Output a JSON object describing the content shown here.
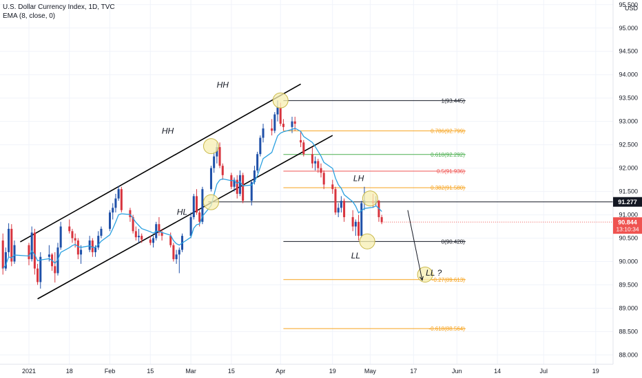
{
  "header": {
    "symbol_title": "U.S. Dollar Currency Index, 1D, TVC",
    "indicator": "EMA (8, close, 0)"
  },
  "price_axis": {
    "currency_label": "USD",
    "ticks": [
      "95.500",
      "95.000",
      "94.500",
      "94.000",
      "93.500",
      "93.000",
      "92.500",
      "92.000",
      "91.500",
      "91.000",
      "90.500",
      "90.000",
      "89.500",
      "89.000",
      "88.500",
      "88.000"
    ],
    "tick_values": [
      95.5,
      95.0,
      94.5,
      94.0,
      93.5,
      93.0,
      92.5,
      92.0,
      91.5,
      91.0,
      90.5,
      90.0,
      89.5,
      89.0,
      88.5,
      88.0
    ],
    "line_tag": "91.277",
    "line_tag_value": 91.277,
    "price_tag": "90.844",
    "price_tag_value": 90.844,
    "countdown": "13:10:34"
  },
  "time_axis": {
    "labels": [
      "2021",
      "18",
      "Feb",
      "15",
      "Mar",
      "15",
      "Apr",
      "19",
      "May",
      "17",
      "Jun",
      "14",
      "Jul",
      "19"
    ],
    "label_days": [
      4,
      18,
      32,
      46,
      60,
      74,
      91,
      109,
      122,
      137,
      152,
      166,
      182,
      200
    ]
  },
  "colors": {
    "up": "#1f50a8",
    "down": "#d8343e",
    "ema": "#2aa0e0",
    "channel": "#000000",
    "highlight_fill": "#f7efb2",
    "highlight_stroke": "#c9b84a",
    "tag_dark": "#131722",
    "tag_red": "#ef5350",
    "fib_one": "#131722",
    "fib_0786": "#f7a21b",
    "fib_0618": "#4caf50",
    "fib_05": "#ef5350",
    "fib_0382": "#f7a21b",
    "fib_zero": "#131722",
    "fib_neg027": "#f7a21b",
    "fib_neg0618": "#f7a21b"
  },
  "annotations": [
    {
      "text": "HH",
      "day": 71,
      "price": 93.72
    },
    {
      "text": "HH",
      "day": 52,
      "price": 92.74
    },
    {
      "text": "HL",
      "day": 57,
      "price": 91.0
    },
    {
      "text": "LH",
      "day": 118,
      "price": 91.72
    },
    {
      "text": "LL",
      "day": 117,
      "price": 90.07
    },
    {
      "text": "LL ?",
      "day": 144,
      "price": 89.7
    }
  ],
  "chart_data": {
    "type": "candlestick",
    "title": "U.S. Dollar Currency Index, 1D, TVC",
    "ylabel": "USD",
    "ylim": [
      87.8,
      95.6
    ],
    "xlim_days": [
      -6,
      206
    ],
    "x_unit": "calendar days since 2021-01-01",
    "candles": [
      {
        "day": -5,
        "open": 90.45,
        "high": 90.6,
        "low": 89.72,
        "close": 89.85
      },
      {
        "day": -4,
        "open": 89.85,
        "high": 90.3,
        "low": 89.8,
        "close": 90.2
      },
      {
        "day": -3,
        "open": 90.2,
        "high": 90.82,
        "low": 90.1,
        "close": 90.7
      },
      {
        "day": -2,
        "open": 90.7,
        "high": 90.8,
        "low": 89.9,
        "close": 90.0
      },
      {
        "day": -1,
        "open": 90.0,
        "high": 90.45,
        "low": 89.95,
        "close": 90.35
      },
      {
        "day": 4,
        "open": 90.35,
        "high": 90.4,
        "low": 89.92,
        "close": 90.05
      },
      {
        "day": 5,
        "open": 90.05,
        "high": 90.75,
        "low": 90.0,
        "close": 90.62
      },
      {
        "day": 6,
        "open": 90.62,
        "high": 90.7,
        "low": 89.72,
        "close": 89.85
      },
      {
        "day": 7,
        "open": 89.85,
        "high": 89.95,
        "low": 89.5,
        "close": 89.56
      },
      {
        "day": 8,
        "open": 89.56,
        "high": 90.2,
        "low": 89.42,
        "close": 90.1
      },
      {
        "day": 11,
        "open": 90.1,
        "high": 90.35,
        "low": 90.0,
        "close": 90.15
      },
      {
        "day": 12,
        "open": 90.15,
        "high": 90.18,
        "low": 89.8,
        "close": 89.9
      },
      {
        "day": 13,
        "open": 89.9,
        "high": 90.2,
        "low": 89.55,
        "close": 89.75
      },
      {
        "day": 14,
        "open": 89.75,
        "high": 90.4,
        "low": 89.7,
        "close": 90.3
      },
      {
        "day": 15,
        "open": 90.3,
        "high": 90.85,
        "low": 90.25,
        "close": 90.75
      },
      {
        "day": 18,
        "open": 90.75,
        "high": 90.9,
        "low": 90.6,
        "close": 90.65
      },
      {
        "day": 19,
        "open": 90.65,
        "high": 90.7,
        "low": 90.4,
        "close": 90.5
      },
      {
        "day": 20,
        "open": 90.5,
        "high": 90.6,
        "low": 90.3,
        "close": 90.45
      },
      {
        "day": 21,
        "open": 90.45,
        "high": 90.5,
        "low": 90.05,
        "close": 90.15
      },
      {
        "day": 22,
        "open": 90.15,
        "high": 90.35,
        "low": 89.95,
        "close": 90.25
      },
      {
        "day": 25,
        "open": 90.25,
        "high": 90.55,
        "low": 90.2,
        "close": 90.45
      },
      {
        "day": 26,
        "open": 90.45,
        "high": 90.5,
        "low": 90.1,
        "close": 90.2
      },
      {
        "day": 27,
        "open": 90.2,
        "high": 90.35,
        "low": 90.1,
        "close": 90.3
      },
      {
        "day": 28,
        "open": 90.3,
        "high": 90.65,
        "low": 90.25,
        "close": 90.55
      },
      {
        "day": 29,
        "open": 90.55,
        "high": 90.75,
        "low": 90.5,
        "close": 90.7
      },
      {
        "day": 32,
        "open": 90.7,
        "high": 91.1,
        "low": 90.65,
        "close": 91.05
      },
      {
        "day": 33,
        "open": 91.05,
        "high": 91.25,
        "low": 90.9,
        "close": 91.15
      },
      {
        "day": 34,
        "open": 91.15,
        "high": 91.45,
        "low": 91.05,
        "close": 91.35
      },
      {
        "day": 35,
        "open": 91.35,
        "high": 91.62,
        "low": 91.3,
        "close": 91.55
      },
      {
        "day": 36,
        "open": 91.55,
        "high": 91.6,
        "low": 91.05,
        "close": 91.1
      },
      {
        "day": 39,
        "open": 91.1,
        "high": 91.15,
        "low": 90.85,
        "close": 90.95
      },
      {
        "day": 40,
        "open": 90.95,
        "high": 91.0,
        "low": 90.6,
        "close": 90.65
      },
      {
        "day": 41,
        "open": 90.65,
        "high": 90.75,
        "low": 90.45,
        "close": 90.52
      },
      {
        "day": 42,
        "open": 90.52,
        "high": 90.7,
        "low": 90.4,
        "close": 90.55
      },
      {
        "day": 43,
        "open": 90.55,
        "high": 90.6,
        "low": 90.4,
        "close": 90.47
      },
      {
        "day": 46,
        "open": 90.47,
        "high": 90.55,
        "low": 90.35,
        "close": 90.4
      },
      {
        "day": 47,
        "open": 90.4,
        "high": 90.55,
        "low": 90.3,
        "close": 90.5
      },
      {
        "day": 48,
        "open": 90.5,
        "high": 90.85,
        "low": 90.45,
        "close": 90.8
      },
      {
        "day": 49,
        "open": 90.8,
        "high": 90.95,
        "low": 90.55,
        "close": 90.62
      },
      {
        "day": 50,
        "open": 90.62,
        "high": 90.7,
        "low": 90.45,
        "close": 90.55
      },
      {
        "day": 53,
        "open": 90.55,
        "high": 90.62,
        "low": 90.3,
        "close": 90.35
      },
      {
        "day": 54,
        "open": 90.35,
        "high": 90.4,
        "low": 90.0,
        "close": 90.05
      },
      {
        "day": 55,
        "open": 90.05,
        "high": 90.25,
        "low": 89.95,
        "close": 90.15
      },
      {
        "day": 56,
        "open": 90.15,
        "high": 90.3,
        "low": 89.75,
        "close": 90.25
      },
      {
        "day": 57,
        "open": 90.25,
        "high": 90.6,
        "low": 90.2,
        "close": 90.55
      },
      {
        "day": 60,
        "open": 90.55,
        "high": 91.05,
        "low": 90.5,
        "close": 90.95
      },
      {
        "day": 61,
        "open": 90.95,
        "high": 91.45,
        "low": 90.9,
        "close": 91.4
      },
      {
        "day": 62,
        "open": 91.4,
        "high": 91.55,
        "low": 91.0,
        "close": 91.05
      },
      {
        "day": 63,
        "open": 91.05,
        "high": 91.1,
        "low": 90.75,
        "close": 90.85
      },
      {
        "day": 64,
        "open": 90.85,
        "high": 91.6,
        "low": 90.8,
        "close": 91.55
      },
      {
        "day": 67,
        "open": 91.55,
        "high": 92.05,
        "low": 91.5,
        "close": 92.0
      },
      {
        "day": 68,
        "open": 92.0,
        "high": 92.35,
        "low": 91.9,
        "close": 92.25
      },
      {
        "day": 69,
        "open": 92.25,
        "high": 92.55,
        "low": 92.1,
        "close": 92.45
      },
      {
        "day": 70,
        "open": 92.45,
        "high": 92.55,
        "low": 92.0,
        "close": 92.05
      },
      {
        "day": 71,
        "open": 92.05,
        "high": 92.1,
        "low": 91.75,
        "close": 91.85
      },
      {
        "day": 74,
        "open": 91.85,
        "high": 91.9,
        "low": 91.55,
        "close": 91.6
      },
      {
        "day": 75,
        "open": 91.6,
        "high": 91.8,
        "low": 91.5,
        "close": 91.75
      },
      {
        "day": 76,
        "open": 91.75,
        "high": 91.85,
        "low": 91.35,
        "close": 91.45
      },
      {
        "day": 77,
        "open": 91.45,
        "high": 91.95,
        "low": 91.4,
        "close": 91.85
      },
      {
        "day": 78,
        "open": 91.85,
        "high": 91.9,
        "low": 91.25,
        "close": 91.3
      },
      {
        "day": 81,
        "open": 91.3,
        "high": 91.75,
        "low": 91.2,
        "close": 91.7
      },
      {
        "day": 82,
        "open": 91.7,
        "high": 92.05,
        "low": 91.65,
        "close": 91.95
      },
      {
        "day": 83,
        "open": 91.95,
        "high": 92.35,
        "low": 91.9,
        "close": 92.3
      },
      {
        "day": 84,
        "open": 92.3,
        "high": 92.7,
        "low": 92.25,
        "close": 92.65
      },
      {
        "day": 85,
        "open": 92.65,
        "high": 92.95,
        "low": 92.55,
        "close": 92.85
      },
      {
        "day": 88,
        "open": 92.85,
        "high": 93.05,
        "low": 92.7,
        "close": 92.8
      },
      {
        "day": 89,
        "open": 92.8,
        "high": 93.2,
        "low": 92.75,
        "close": 93.15
      },
      {
        "day": 90,
        "open": 93.15,
        "high": 93.45,
        "low": 93.0,
        "close": 93.3
      },
      {
        "day": 91,
        "open": 93.3,
        "high": 93.4,
        "low": 92.9,
        "close": 92.95
      },
      {
        "day": 92,
        "open": 92.95,
        "high": 93.05,
        "low": 92.8,
        "close": 92.88
      },
      {
        "day": 95,
        "open": 92.88,
        "high": 93.1,
        "low": 92.75,
        "close": 93.0
      },
      {
        "day": 96,
        "open": 93.0,
        "high": 93.1,
        "low": 92.8,
        "close": 92.95
      },
      {
        "day": 98,
        "open": 92.6,
        "high": 92.8,
        "low": 92.45,
        "close": 92.55
      },
      {
        "day": 99,
        "open": 92.55,
        "high": 92.6,
        "low": 92.25,
        "close": 92.3
      },
      {
        "day": 102,
        "open": 92.3,
        "high": 92.45,
        "low": 92.0,
        "close": 92.1
      },
      {
        "day": 103,
        "open": 92.1,
        "high": 92.25,
        "low": 91.95,
        "close": 92.15
      },
      {
        "day": 104,
        "open": 92.15,
        "high": 92.2,
        "low": 91.9,
        "close": 92.0
      },
      {
        "day": 105,
        "open": 92.0,
        "high": 92.1,
        "low": 91.8,
        "close": 91.9
      },
      {
        "day": 106,
        "open": 91.9,
        "high": 91.95,
        "low": 91.55,
        "close": 91.65
      },
      {
        "day": 109,
        "open": 91.65,
        "high": 91.75,
        "low": 91.45,
        "close": 91.55
      },
      {
        "day": 110,
        "open": 91.55,
        "high": 91.6,
        "low": 91.0,
        "close": 91.05
      },
      {
        "day": 111,
        "open": 91.05,
        "high": 91.25,
        "low": 90.95,
        "close": 91.15
      },
      {
        "day": 112,
        "open": 91.15,
        "high": 91.4,
        "low": 91.05,
        "close": 91.3
      },
      {
        "day": 113,
        "open": 91.3,
        "high": 91.35,
        "low": 90.85,
        "close": 90.95
      },
      {
        "day": 116,
        "open": 90.95,
        "high": 91.1,
        "low": 90.65,
        "close": 90.75
      },
      {
        "day": 117,
        "open": 90.75,
        "high": 90.9,
        "low": 90.55,
        "close": 90.85
      },
      {
        "day": 118,
        "open": 90.85,
        "high": 91.0,
        "low": 90.45,
        "close": 90.55
      },
      {
        "day": 119,
        "open": 90.55,
        "high": 91.3,
        "low": 90.5,
        "close": 91.25
      },
      {
        "day": 120,
        "open": 91.25,
        "high": 91.6,
        "low": 91.1,
        "close": 91.3
      },
      {
        "day": 123,
        "open": 91.3,
        "high": 91.45,
        "low": 91.15,
        "close": 91.25
      },
      {
        "day": 124,
        "open": 91.25,
        "high": 91.4,
        "low": 91.2,
        "close": 91.3
      },
      {
        "day": 125,
        "open": 91.3,
        "high": 91.32,
        "low": 90.85,
        "close": 90.95
      },
      {
        "day": 126,
        "open": 90.95,
        "high": 91.0,
        "low": 90.8,
        "close": 90.84
      }
    ],
    "ema": {
      "period": 8,
      "source": "close"
    },
    "horizontal_level": 91.277,
    "fibonacci": [
      {
        "label": "1(93.445)",
        "price": 93.445,
        "color": "#131722"
      },
      {
        "label": "0.786(92.799)",
        "price": 92.799,
        "color": "#f7a21b"
      },
      {
        "label": "0.618(92.292)",
        "price": 92.292,
        "color": "#4caf50"
      },
      {
        "label": "0.5(91.936)",
        "price": 91.936,
        "color": "#ef5350"
      },
      {
        "label": "0.382(91.580)",
        "price": 91.58,
        "color": "#f7a21b"
      },
      {
        "label": "0(90.428)",
        "price": 90.428,
        "color": "#131722"
      },
      {
        "label": "-0.27(89.613)",
        "price": 89.613,
        "color": "#f7a21b"
      },
      {
        "label": "-0.618(88.564)",
        "price": 88.564,
        "color": "#f7a21b"
      }
    ],
    "fib_day_range": [
      92,
      155
    ],
    "channel_upper": [
      {
        "day": 1,
        "price": 90.42
      },
      {
        "day": 98,
        "price": 93.8
      }
    ],
    "channel_lower": [
      {
        "day": 7,
        "price": 89.2
      },
      {
        "day": 109,
        "price": 92.7
      }
    ],
    "highlights": [
      {
        "day": 91,
        "price": 93.45
      },
      {
        "day": 67,
        "price": 92.47
      },
      {
        "day": 67,
        "price": 91.27
      },
      {
        "day": 122,
        "price": 91.35
      },
      {
        "day": 121,
        "price": 90.43
      },
      {
        "day": 141,
        "price": 89.72
      }
    ],
    "arrow": {
      "from": {
        "day": 135,
        "price": 91.1
      },
      "to": {
        "day": 140,
        "price": 89.6
      }
    }
  }
}
